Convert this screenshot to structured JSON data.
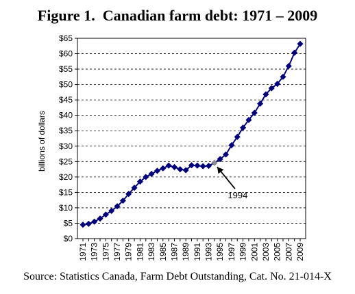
{
  "title": "Figure 1.  Canadian farm debt: 1971 – 2009",
  "source": "Source: Statistics Canada, Farm Debt Outstanding, Cat. No. 21-014-X",
  "chart_data": {
    "type": "line",
    "title": "",
    "xlabel": "",
    "ylabel": "billions of dollars",
    "ylim": [
      0,
      65
    ],
    "y_tick_values": [
      0,
      5,
      10,
      15,
      20,
      25,
      30,
      35,
      40,
      45,
      50,
      55,
      60,
      65
    ],
    "y_tick_labels": [
      "$0",
      "$5",
      "$10",
      "$15",
      "$20",
      "$25",
      "$30",
      "$35",
      "$40",
      "$45",
      "$50",
      "$55",
      "$60",
      "$65"
    ],
    "x_tick_labels": [
      "1971",
      "1973",
      "1975",
      "1977",
      "1979",
      "1981",
      "1983",
      "1985",
      "1987",
      "1989",
      "1991",
      "1993",
      "1995",
      "1997",
      "1999",
      "2001",
      "2003",
      "2005",
      "2007",
      "2009"
    ],
    "grid": "horizontal dashed",
    "legend": "none",
    "series": [
      {
        "x": [
          1971,
          1972,
          1973,
          1974,
          1975,
          1976,
          1977,
          1978,
          1979,
          1980,
          1981,
          1982,
          1983,
          1984,
          1985,
          1986,
          1987,
          1988,
          1989,
          1990,
          1991,
          1992,
          1993,
          1994,
          1995,
          1996,
          1997,
          1998,
          1999,
          2000,
          2001,
          2002,
          2003,
          2004,
          2005,
          2006,
          2007,
          2008,
          2009
        ],
        "values": [
          4.5,
          4.8,
          5.5,
          6.5,
          7.8,
          9.0,
          10.5,
          12.3,
          14.5,
          16.5,
          18.5,
          20.0,
          21.0,
          22.0,
          22.8,
          23.7,
          23.2,
          22.5,
          22.2,
          23.8,
          23.7,
          23.5,
          23.6,
          24.6,
          25.8,
          27.3,
          30.3,
          33.0,
          36.0,
          38.5,
          40.8,
          43.8,
          46.8,
          48.8,
          50.2,
          52.5,
          56.0,
          60.3,
          63.2
        ],
        "color": "#00007f"
      }
    ],
    "highlight": {
      "x": 1994,
      "color": "#8c8c9c"
    },
    "annotations": [
      {
        "text": "1994",
        "x": 1994
      }
    ]
  }
}
